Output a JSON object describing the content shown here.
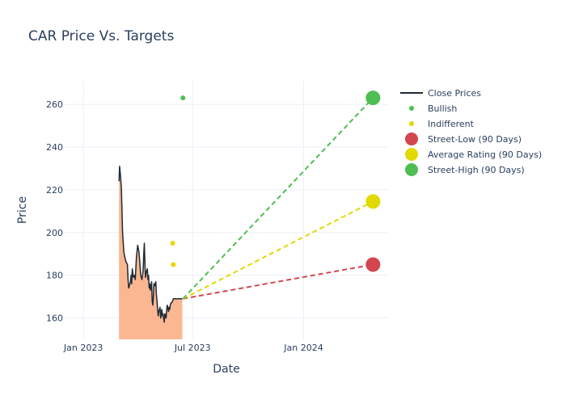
{
  "chart_data": {
    "type": "line",
    "title": "CAR Price Vs. Targets",
    "xlabel": "Date",
    "ylabel": "Price",
    "xlim": [
      "2022-12-01",
      "2024-05-20"
    ],
    "ylim": [
      150,
      271
    ],
    "x_ticks": [
      {
        "date": "2023-01-01",
        "label": "Jan 2023"
      },
      {
        "date": "2023-07-01",
        "label": "Jul 2023"
      },
      {
        "date": "2024-01-01",
        "label": "Jan 2024"
      }
    ],
    "y_ticks": [
      160,
      180,
      200,
      220,
      240,
      260
    ],
    "grid": true,
    "legend_position": "top-right",
    "series": [
      {
        "name": "Close Prices",
        "kind": "line-area",
        "color": "#1f2a36",
        "fill_color": "#fbb791",
        "x": [
          "2023-03-01",
          "2023-03-02",
          "2023-03-03",
          "2023-03-05",
          "2023-03-07",
          "2023-03-09",
          "2023-03-11",
          "2023-03-13",
          "2023-03-15",
          "2023-03-16",
          "2023-03-17",
          "2023-03-18",
          "2023-03-20",
          "2023-03-21",
          "2023-03-22",
          "2023-03-23",
          "2023-03-24",
          "2023-03-25",
          "2023-03-27",
          "2023-03-28",
          "2023-03-29",
          "2023-03-30",
          "2023-04-01",
          "2023-04-03",
          "2023-04-04",
          "2023-04-05",
          "2023-04-06",
          "2023-04-08",
          "2023-04-10",
          "2023-04-11",
          "2023-04-12",
          "2023-04-13",
          "2023-04-14",
          "2023-04-15",
          "2023-04-17",
          "2023-04-18",
          "2023-04-19",
          "2023-04-20",
          "2023-04-21",
          "2023-04-22",
          "2023-04-24",
          "2023-04-25",
          "2023-04-26",
          "2023-04-27",
          "2023-04-28",
          "2023-04-29",
          "2023-05-01",
          "2023-05-02",
          "2023-05-03",
          "2023-05-04",
          "2023-05-05",
          "2023-05-06",
          "2023-05-08",
          "2023-05-09",
          "2023-05-10",
          "2023-05-11",
          "2023-05-12",
          "2023-05-13",
          "2023-05-15",
          "2023-05-16",
          "2023-05-17",
          "2023-05-18",
          "2023-05-19",
          "2023-05-20",
          "2023-05-22",
          "2023-05-23",
          "2023-05-24",
          "2023-05-25",
          "2023-05-26",
          "2023-05-27",
          "2023-05-29",
          "2023-05-30",
          "2023-05-31",
          "2023-06-01",
          "2023-06-02",
          "2023-06-03",
          "2023-06-05",
          "2023-06-06",
          "2023-06-07",
          "2023-06-08",
          "2023-06-09",
          "2023-06-10",
          "2023-06-12",
          "2023-06-13",
          "2023-06-14"
        ],
        "y": [
          224,
          231,
          228,
          221,
          200,
          191,
          188,
          186,
          185,
          178,
          174,
          175,
          177,
          180,
          176,
          183,
          181,
          179,
          180,
          178,
          184,
          189,
          194,
          191,
          188,
          184,
          180,
          178,
          182,
          190,
          195,
          185,
          179,
          181,
          183,
          178,
          180,
          174,
          176,
          173,
          177,
          168,
          166,
          170,
          176,
          175,
          177,
          171,
          168,
          164,
          161,
          163,
          165,
          160,
          162,
          164,
          161,
          162,
          158,
          162,
          161,
          160,
          164,
          166,
          163,
          165,
          164,
          166,
          167,
          167,
          168,
          169,
          169,
          169,
          169,
          169,
          169,
          169,
          169,
          169,
          169,
          169,
          169,
          169,
          169
        ]
      },
      {
        "name": "Bullish",
        "kind": "marker",
        "color": "#4fbe52",
        "points": [
          {
            "x": "2023-06-15",
            "y": 263
          }
        ]
      },
      {
        "name": "Indifferent",
        "kind": "marker",
        "color": "#e6d700",
        "points": [
          {
            "x": "2023-05-29",
            "y": 195
          },
          {
            "x": "2023-05-30",
            "y": 185
          }
        ]
      },
      {
        "name": "Street-Low (90 Days)",
        "kind": "target",
        "color": "#d3464f",
        "from": {
          "x": "2023-06-15",
          "y": 169
        },
        "to": {
          "x": "2024-04-25",
          "y": 185
        }
      },
      {
        "name": "Average Rating (90 Days)",
        "kind": "target",
        "color": "#e0da00",
        "from": {
          "x": "2023-06-15",
          "y": 169
        },
        "to": {
          "x": "2024-04-25",
          "y": 214.5
        }
      },
      {
        "name": "Street-High (90 Days)",
        "kind": "target",
        "color": "#4fbe52",
        "from": {
          "x": "2023-06-15",
          "y": 169
        },
        "to": {
          "x": "2024-04-25",
          "y": 263
        }
      }
    ]
  }
}
